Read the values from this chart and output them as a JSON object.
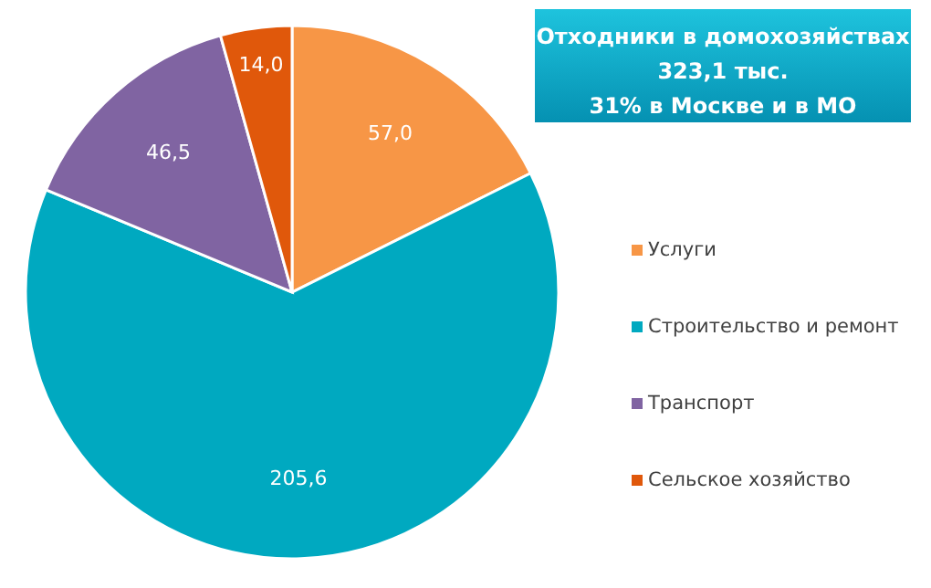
{
  "chart_data": {
    "type": "pie",
    "title": "Отходники в домохозяйствах\n323,1 тыс.\n31% в  Москве и в МО",
    "categories": [
      "Услуги",
      "Строительство и ремонт",
      "Транспорт",
      "Сельское хозяйство"
    ],
    "values": [
      57.0,
      205.6,
      46.5,
      14.0
    ],
    "colors": [
      "#f79646",
      "#00a9c0",
      "#8064a2",
      "#e0580b"
    ],
    "value_labels": [
      "57,0",
      "205,6",
      "46,5",
      "14,0"
    ],
    "legend": "right"
  }
}
